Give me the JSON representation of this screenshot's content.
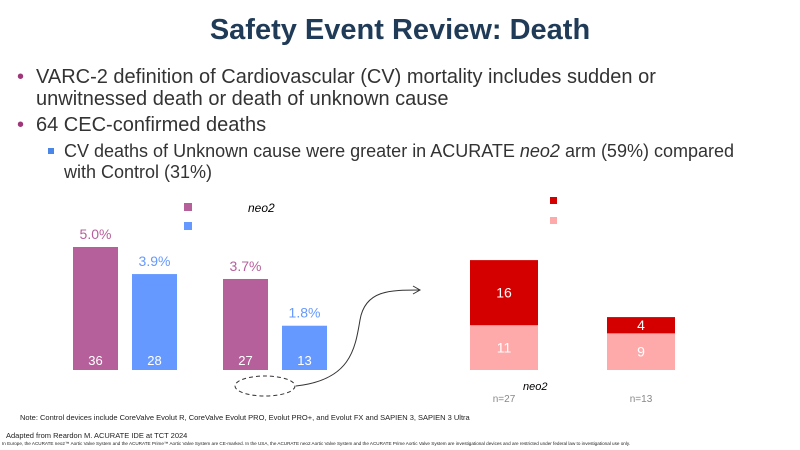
{
  "title": "Safety Event Review: Death",
  "bullets": [
    "VARC-2 definition of Cardiovascular (CV) mortality includes sudden or unwitnessed death or death of unknown cause",
    "64 CEC-confirmed deaths"
  ],
  "sub_bullet": "CV deaths of Unknown cause were greater in ACURATE neo2 arm (59%) compared with Control (31%)",
  "sub_bullet_parts": {
    "a": "CV deaths of Unknown cause were greater in ACURATE ",
    "b": "neo2",
    "c": " arm (59%) compared with Control (31%)"
  },
  "chart_data": [
    {
      "type": "bar",
      "legend_fragment": "neo2",
      "series": [
        {
          "color": "#b5609b",
          "values": [
            5.0,
            3.7
          ],
          "counts": [
            36,
            27
          ],
          "labels": [
            "5.0%",
            "3.7%"
          ]
        },
        {
          "color": "#6699ff",
          "values": [
            3.9,
            1.8
          ],
          "counts": [
            28,
            13
          ],
          "labels": [
            "3.9%",
            "1.8%"
          ]
        }
      ]
    },
    {
      "type": "bar",
      "stacked": true,
      "categories": [
        "n=27",
        "n=13"
      ],
      "category_fragment": "neo2",
      "series": [
        {
          "color": "#ffaaaa",
          "values": [
            11,
            9
          ]
        },
        {
          "color": "#d40000",
          "values": [
            16,
            4
          ]
        }
      ]
    }
  ],
  "note": "Note: Control devices include CoreValve Evolut R, CoreValve Evolut PRO, Evolut PRO+, and Evolut FX and SAPIEN 3, SAPIEN 3 Ultra",
  "source": "Adapted from Reardon M.  ACURATE IDE at TCT 2024",
  "disclaimer": "In Europe, the ACURATE neo2™ Aortic Valve System and the ACURATE Prime™ Aortic Valve System are CE-marked. In the USA, the ACURATE neo2 Aortic Valve System and the ACURATE Prime Aortic Valve System are investigational devices and are restricted under federal law to investigational use only."
}
